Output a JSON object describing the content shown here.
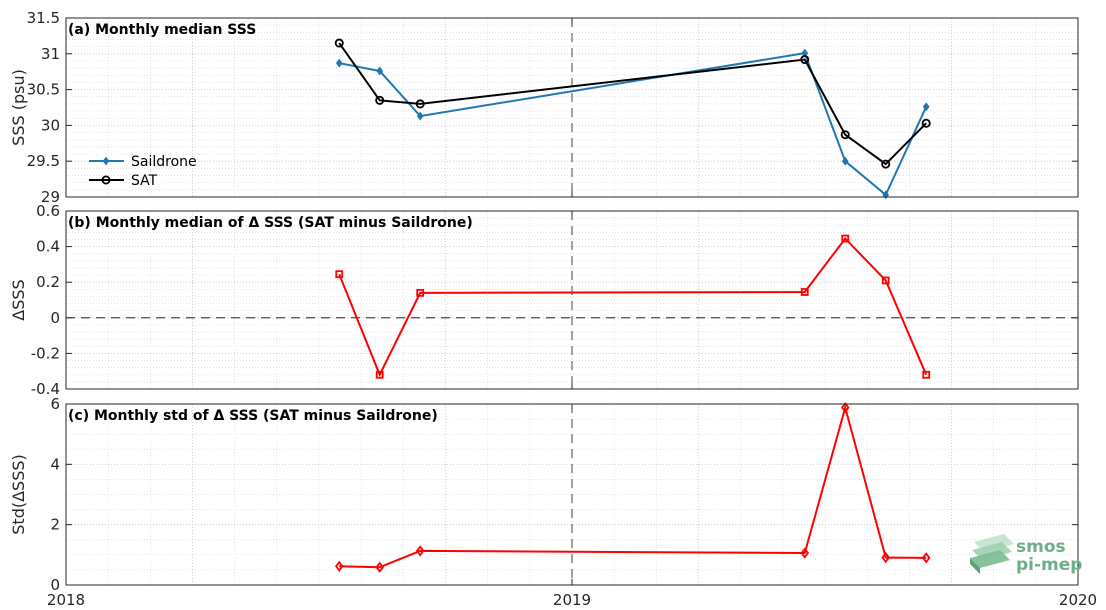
{
  "colors": {
    "saildrone": "#1f77b4",
    "sat": "#000000",
    "delta": "#ff0000",
    "logo": "#6fae8a"
  },
  "logo": {
    "line1": "smos",
    "line2": "pi-mep",
    "icon": "stacked-layers-icon"
  },
  "chart_data": [
    {
      "id": "a",
      "type": "line",
      "title": "(a) Monthly median SSS",
      "ylabel": "SSS (psu)",
      "xlabel": "",
      "ylim": [
        29,
        31.5
      ],
      "yticks": [
        "29",
        "29.5",
        "30",
        "30.5",
        "31",
        "31.5"
      ],
      "xticks": [
        "2018",
        "2019",
        "2020"
      ],
      "xlim": [
        2018.0,
        2020.0
      ],
      "grid": true,
      "minor_grid": true,
      "legend_position": "left",
      "series": [
        {
          "name": "Saildrone",
          "color": "#1f77b4",
          "marker": "diamond",
          "x": [
            2018.54,
            2018.62,
            2018.7,
            2019.46,
            2019.54,
            2019.62,
            2019.7
          ],
          "y": [
            30.87,
            30.76,
            30.13,
            31.01,
            29.5,
            29.03,
            30.26
          ]
        },
        {
          "name": "SAT",
          "color": "#000000",
          "marker": "circle",
          "x": [
            2018.54,
            2018.62,
            2018.7,
            2019.46,
            2019.54,
            2019.62,
            2019.7
          ],
          "y": [
            31.15,
            30.35,
            30.3,
            30.92,
            29.87,
            29.46,
            30.03
          ]
        }
      ]
    },
    {
      "id": "b",
      "type": "line",
      "title": "(b) Monthly median of Δ SSS (SAT minus Saildrone)",
      "ylabel": "ΔSSS",
      "xlabel": "",
      "ylim": [
        -0.4,
        0.6
      ],
      "yticks": [
        "-0.4",
        "-0.2",
        "0",
        "0.2",
        "0.4",
        "0.6"
      ],
      "xticks": [
        "2018",
        "2019",
        "2020"
      ],
      "xlim": [
        2018.0,
        2020.0
      ],
      "grid": true,
      "minor_grid": true,
      "zero_line": true,
      "series": [
        {
          "color": "#ff0000",
          "marker": "square",
          "x": [
            2018.54,
            2018.62,
            2018.7,
            2019.46,
            2019.54,
            2019.62,
            2019.7
          ],
          "y": [
            0.245,
            -0.32,
            0.14,
            0.145,
            0.445,
            0.21,
            -0.32
          ]
        }
      ]
    },
    {
      "id": "c",
      "type": "line",
      "title": "(c) Monthly std of Δ SSS (SAT minus Saildrone)",
      "ylabel": "Std(ΔSSS)",
      "xlabel": "",
      "ylim": [
        0,
        6
      ],
      "yticks": [
        "0",
        "2",
        "4",
        "6"
      ],
      "xticks": [
        "2018",
        "2019",
        "2020"
      ],
      "xticks_visible": true,
      "xlim": [
        2018.0,
        2020.0
      ],
      "grid": true,
      "minor_grid": true,
      "series": [
        {
          "color": "#ff0000",
          "marker": "diamond",
          "x": [
            2018.54,
            2018.62,
            2018.7,
            2019.46,
            2019.54,
            2019.62,
            2019.7
          ],
          "y": [
            0.62,
            0.59,
            1.13,
            1.06,
            5.88,
            0.91,
            0.9
          ]
        }
      ]
    }
  ]
}
